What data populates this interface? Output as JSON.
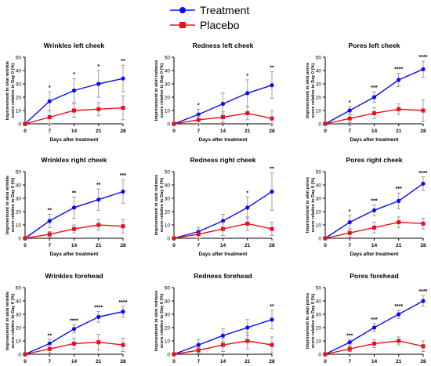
{
  "legend": [
    {
      "name": "Treatment",
      "color": "#0a0af5",
      "marker": "circle"
    },
    {
      "name": "Placebo",
      "color": "#e8101a",
      "marker": "square"
    }
  ],
  "chart_data": [
    {
      "type": "line",
      "title": "Wrinkles left cheek",
      "xlabel": "Days after treatment",
      "ylabel": "Improvement in skin wrinkle score relative to Day 0 (%)",
      "x": [
        0,
        7,
        14,
        21,
        28
      ],
      "xticks": [
        0,
        7,
        14,
        21,
        28
      ],
      "ylim": [
        0,
        50
      ],
      "yticks": [
        0,
        10,
        20,
        30,
        40,
        50
      ],
      "series": [
        {
          "name": "Treatment",
          "values": [
            0,
            17,
            25,
            30,
            34
          ],
          "err": [
            0,
            7,
            9,
            10,
            10
          ]
        },
        {
          "name": "Placebo",
          "values": [
            0,
            5,
            10,
            11,
            12
          ],
          "err": [
            0,
            5,
            5,
            5,
            9
          ]
        }
      ],
      "annotations": [
        "",
        "*",
        "*",
        "*",
        "**"
      ]
    },
    {
      "type": "line",
      "title": "Redness left cheek",
      "xlabel": "Days after treatment",
      "ylabel": "Improvement in skin redness score relative to Day 0 (%)",
      "x": [
        0,
        7,
        14,
        21,
        28
      ],
      "xticks": [
        0,
        7,
        14,
        21,
        28
      ],
      "ylim": [
        0,
        50
      ],
      "yticks": [
        0,
        10,
        20,
        30,
        40,
        50
      ],
      "series": [
        {
          "name": "Treatment",
          "values": [
            0,
            7,
            15,
            23,
            29
          ],
          "err": [
            0,
            4,
            8,
            10,
            10
          ]
        },
        {
          "name": "Placebo",
          "values": [
            0,
            3,
            5,
            8,
            4
          ],
          "err": [
            0,
            3,
            4,
            5,
            6
          ]
        }
      ],
      "annotations": [
        "",
        "*",
        "",
        "*",
        "**"
      ]
    },
    {
      "type": "line",
      "title": "Pores left cheek",
      "xlabel": "Days after treatment",
      "ylabel": "Improvement in skin pores score relative to Day 0 (%)",
      "x": [
        0,
        7,
        14,
        21,
        28
      ],
      "xticks": [
        0,
        7,
        14,
        21,
        28
      ],
      "ylim": [
        0,
        50
      ],
      "yticks": [
        0,
        10,
        20,
        30,
        40,
        50
      ],
      "series": [
        {
          "name": "Treatment",
          "values": [
            0,
            10,
            20,
            33,
            41
          ],
          "err": [
            0,
            3,
            4,
            5,
            6
          ]
        },
        {
          "name": "Placebo",
          "values": [
            0,
            4,
            8,
            11,
            10
          ],
          "err": [
            0,
            3,
            4,
            4,
            8
          ]
        }
      ],
      "annotations": [
        "",
        "*",
        "***",
        "****",
        "****"
      ]
    },
    {
      "type": "line",
      "title": "Wrinkles right cheek",
      "xlabel": "Days after treatment",
      "ylabel": "Improvement in skin wrinkle score relative to Day 0 (%)",
      "x": [
        0,
        7,
        14,
        21,
        28
      ],
      "xticks": [
        0,
        7,
        14,
        21,
        28
      ],
      "ylim": [
        0,
        50
      ],
      "yticks": [
        0,
        10,
        20,
        30,
        40,
        50
      ],
      "series": [
        {
          "name": "Treatment",
          "values": [
            0,
            13,
            23,
            29,
            35
          ],
          "err": [
            0,
            5,
            8,
            8,
            9
          ]
        },
        {
          "name": "Placebo",
          "values": [
            0,
            3,
            7,
            10,
            9
          ],
          "err": [
            0,
            2,
            3,
            4,
            5
          ]
        }
      ],
      "annotations": [
        "",
        "**",
        "**",
        "**",
        "***"
      ]
    },
    {
      "type": "line",
      "title": "Redness right cheek",
      "xlabel": "Days after treatment",
      "ylabel": "Improvement in skin redness score relative to Day 0 (%)",
      "x": [
        0,
        7,
        14,
        21,
        28
      ],
      "xticks": [
        0,
        7,
        14,
        21,
        28
      ],
      "ylim": [
        0,
        50
      ],
      "yticks": [
        0,
        10,
        20,
        30,
        40,
        50
      ],
      "series": [
        {
          "name": "Treatment",
          "values": [
            0,
            5,
            13,
            23,
            35
          ],
          "err": [
            0,
            3,
            5,
            8,
            14
          ]
        },
        {
          "name": "Placebo",
          "values": [
            0,
            3,
            7,
            11,
            7
          ],
          "err": [
            0,
            3,
            5,
            5,
            5
          ]
        }
      ],
      "annotations": [
        "",
        "",
        "",
        "*",
        "**"
      ]
    },
    {
      "type": "line",
      "title": "Pores right cheek",
      "xlabel": "Days after treatment",
      "ylabel": "Improvement in skin pores score relative to Day 0 (%)",
      "x": [
        0,
        7,
        14,
        21,
        28
      ],
      "xticks": [
        0,
        7,
        14,
        21,
        28
      ],
      "ylim": [
        0,
        50
      ],
      "yticks": [
        0,
        10,
        20,
        30,
        40,
        50
      ],
      "series": [
        {
          "name": "Treatment",
          "values": [
            0,
            12,
            21,
            28,
            41
          ],
          "err": [
            0,
            5,
            4,
            6,
            5
          ]
        },
        {
          "name": "Placebo",
          "values": [
            0,
            4,
            8,
            12,
            11
          ],
          "err": [
            0,
            3,
            4,
            4,
            4
          ]
        }
      ],
      "annotations": [
        "",
        "*",
        "***",
        "***",
        "****"
      ]
    },
    {
      "type": "line",
      "title": "Wrinkles forehead",
      "xlabel": "Days after treatment",
      "ylabel": "Improvement in skin wrinkle score relative to Day 0 (%)",
      "x": [
        0,
        7,
        14,
        21,
        28
      ],
      "xticks": [
        0,
        7,
        14,
        21,
        28
      ],
      "ylim": [
        0,
        50
      ],
      "yticks": [
        0,
        10,
        20,
        30,
        40,
        50
      ],
      "series": [
        {
          "name": "Treatment",
          "values": [
            0,
            8,
            19,
            28,
            32
          ],
          "err": [
            0,
            3,
            3,
            4,
            4
          ]
        },
        {
          "name": "Placebo",
          "values": [
            0,
            4,
            8,
            9,
            7
          ],
          "err": [
            0,
            3,
            4,
            6,
            5
          ]
        }
      ],
      "annotations": [
        "",
        "**",
        "****",
        "****",
        "****"
      ]
    },
    {
      "type": "line",
      "title": "Redness forehead",
      "xlabel": "Days after treatment",
      "ylabel": "Improvement in skin redness score relative to Day 0 (%)",
      "x": [
        0,
        7,
        14,
        21,
        28
      ],
      "xticks": [
        0,
        7,
        14,
        21,
        28
      ],
      "ylim": [
        0,
        50
      ],
      "yticks": [
        0,
        10,
        20,
        30,
        40,
        50
      ],
      "series": [
        {
          "name": "Treatment",
          "values": [
            0,
            7,
            14,
            20,
            26
          ],
          "err": [
            0,
            4,
            5,
            6,
            7
          ]
        },
        {
          "name": "Placebo",
          "values": [
            0,
            3,
            7,
            10,
            7
          ],
          "err": [
            0,
            2,
            5,
            6,
            6
          ]
        }
      ],
      "annotations": [
        "",
        "",
        "",
        "",
        "**"
      ]
    },
    {
      "type": "line",
      "title": "Pores forehead",
      "xlabel": "Days after treatment",
      "ylabel": "Improvement in skin pores score relative to Day 0 (%)",
      "x": [
        0,
        7,
        14,
        21,
        28
      ],
      "xticks": [
        0,
        7,
        14,
        21,
        28
      ],
      "ylim": [
        0,
        50
      ],
      "yticks": [
        0,
        10,
        20,
        30,
        40,
        50
      ],
      "series": [
        {
          "name": "Treatment",
          "values": [
            0,
            9,
            20,
            30,
            40
          ],
          "err": [
            0,
            2,
            3,
            3,
            4
          ]
        },
        {
          "name": "Placebo",
          "values": [
            0,
            4,
            8,
            10,
            6
          ],
          "err": [
            0,
            2,
            3,
            3,
            4
          ]
        }
      ],
      "annotations": [
        "",
        "***",
        "***",
        "****",
        "****"
      ]
    }
  ]
}
